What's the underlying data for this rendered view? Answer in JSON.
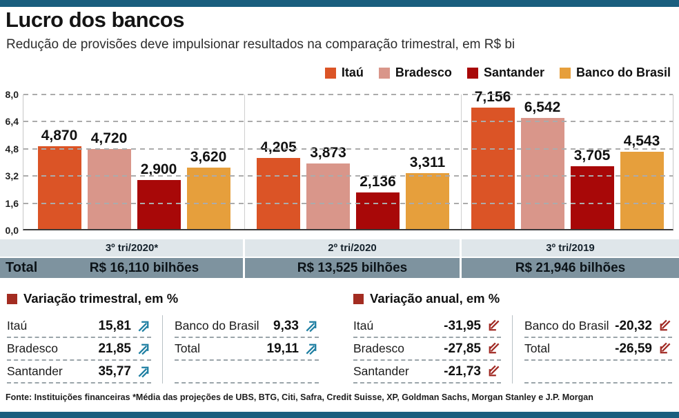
{
  "page": {
    "title": "Lucro dos bancos",
    "subtitle": "Redução de provisões deve impulsionar resultados na comparação trimestral, em R$ bi",
    "footer": "Fonte: Instituições financeiras *Média das projeções de UBS, BTG, Citi, Safra, Credit Suisse, XP, Goldman Sachs, Morgan Stanley e J.P. Morgan",
    "accent_bar_color": "#1A5E7E"
  },
  "chart_data": {
    "type": "bar",
    "title": "Lucro dos bancos",
    "subtitle": "Redução de provisões deve impulsionar resultados na comparação trimestral, em R$ bi",
    "unit": "R$ bi",
    "categories": [
      "3º tri/2020*",
      "2º tri/2020",
      "3º tri/2019"
    ],
    "series": [
      {
        "name": "Itaú",
        "color": "#DB5426",
        "values": [
          4.87,
          4.205,
          7.156
        ],
        "labels": [
          "4,870",
          "4,205",
          "7,156"
        ]
      },
      {
        "name": "Bradesco",
        "color": "#D9968A",
        "values": [
          4.72,
          3.873,
          6.542
        ],
        "labels": [
          "4,720",
          "3,873",
          "6,542"
        ]
      },
      {
        "name": "Santander",
        "color": "#A80808",
        "values": [
          2.9,
          2.136,
          3.705
        ],
        "labels": [
          "2,900",
          "2,136",
          "3,705"
        ]
      },
      {
        "name": "Banco do Brasil",
        "color": "#E69F3C",
        "values": [
          3.62,
          3.311,
          4.543
        ],
        "labels": [
          "3,620",
          "3,311",
          "4,543"
        ]
      }
    ],
    "ylim": [
      0,
      8
    ],
    "yticks": [
      "8,0",
      "6,4",
      "4,8",
      "3,2",
      "1,6",
      "0,0"
    ],
    "grid": "dashed horizontal gridlines, vertical panel dividers",
    "legend_position": "top-right"
  },
  "totals": {
    "label": "Total",
    "values": [
      "R$ 16,110 bilhões",
      "R$ 13,525 bilhões",
      "R$ 21,946 bilhões"
    ]
  },
  "quarterly_variation": {
    "title": "Variação trimestral, em %",
    "direction": "up",
    "arrow_color": "#1F7FA2",
    "bullet_color": "#A32C21",
    "col1": [
      {
        "label": "Itaú",
        "value": "15,81"
      },
      {
        "label": "Bradesco",
        "value": "21,85"
      },
      {
        "label": "Santander",
        "value": "35,77"
      }
    ],
    "col2": [
      {
        "label": "Banco do Brasil",
        "value": "9,33"
      },
      {
        "label": "Total",
        "value": "19,11"
      }
    ]
  },
  "annual_variation": {
    "title": "Variação anual, em %",
    "direction": "down",
    "arrow_color": "#A12B25",
    "bullet_color": "#A32C21",
    "col1": [
      {
        "label": "Itaú",
        "value": "-31,95"
      },
      {
        "label": "Bradesco",
        "value": "-27,85"
      },
      {
        "label": "Santander",
        "value": "-21,73"
      }
    ],
    "col2": [
      {
        "label": "Banco do Brasil",
        "value": "-20,32"
      },
      {
        "label": "Total",
        "value": "-26,59"
      }
    ]
  }
}
